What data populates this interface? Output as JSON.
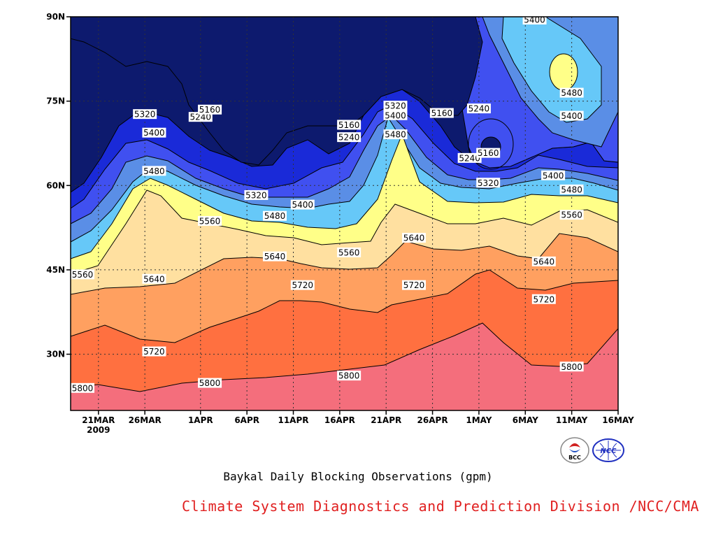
{
  "caption": "Baykal Daily Blocking Observations (gpm)",
  "credit": "Climate System Diagnostics and Prediction Division /NCC/CMA",
  "logos": [
    {
      "name": "bcc-logo",
      "text": "BCC"
    },
    {
      "name": "ncc-logo",
      "text": "NCC"
    }
  ],
  "chart_data": {
    "type": "filled-contour",
    "title": "Baykal Daily Blocking Observations (gpm)",
    "x_ticks": [
      "21MAR",
      "26MAR",
      "1APR",
      "6APR",
      "11APR",
      "16APR",
      "21APR",
      "26APR",
      "1MAY",
      "6MAY",
      "11MAY",
      "16MAY"
    ],
    "x_year_label": "2009",
    "x_range": [
      "2009-03-18",
      "2009-05-16"
    ],
    "y_ticks": [
      "30N",
      "45N",
      "60N",
      "75N",
      "90N"
    ],
    "y_range": [
      20,
      90
    ],
    "grid": "dotted",
    "contour_levels": [
      5160,
      5240,
      5320,
      5400,
      5480,
      5560,
      5640,
      5720,
      5800
    ],
    "band_colors": [
      "#0d1a6e",
      "#1a2ad8",
      "#4050f0",
      "#5a8ee6",
      "#66c8f8",
      "#ffff88",
      "#ffe0a0",
      "#ffa060",
      "#ff7040",
      "#f46e7c"
    ],
    "contour_labels": [
      {
        "date": "2009-03-19",
        "lat": 24,
        "value": "5800"
      },
      {
        "date": "2009-03-18",
        "lat": 44.2,
        "value": "5560"
      },
      {
        "date": "2009-03-26",
        "lat": 72.7,
        "value": "5320"
      },
      {
        "date": "2009-03-27",
        "lat": 69.4,
        "value": "5400"
      },
      {
        "date": "2009-03-27",
        "lat": 62.6,
        "value": "5480"
      },
      {
        "date": "2009-03-27",
        "lat": 43.4,
        "value": "5640"
      },
      {
        "date": "2009-03-27",
        "lat": 30.5,
        "value": "5720"
      },
      {
        "date": "2009-04-01",
        "lat": 72.2,
        "value": "5240"
      },
      {
        "date": "2009-04-02",
        "lat": 24.9,
        "value": "5800"
      },
      {
        "date": "2009-04-02",
        "lat": 73.5,
        "value": "5160"
      },
      {
        "date": "2009-04-02",
        "lat": 53.7,
        "value": "5560"
      },
      {
        "date": "2009-04-07",
        "lat": 58.3,
        "value": "5320"
      },
      {
        "date": "2009-04-09",
        "lat": 54.6,
        "value": "5480"
      },
      {
        "date": "2009-04-09",
        "lat": 47.4,
        "value": "5640"
      },
      {
        "date": "2009-04-12",
        "lat": 42.3,
        "value": "5720"
      },
      {
        "date": "2009-04-12",
        "lat": 56.6,
        "value": "5400"
      },
      {
        "date": "2009-04-17",
        "lat": 70.8,
        "value": "5160"
      },
      {
        "date": "2009-04-17",
        "lat": 68.6,
        "value": "5240"
      },
      {
        "date": "2009-04-17",
        "lat": 48.1,
        "value": "5560"
      },
      {
        "date": "2009-04-17",
        "lat": 26.2,
        "value": "5800"
      },
      {
        "date": "2009-04-22",
        "lat": 74.2,
        "value": "5320"
      },
      {
        "date": "2009-04-22",
        "lat": 72.5,
        "value": "5400"
      },
      {
        "date": "2009-04-22",
        "lat": 69.1,
        "value": "5480"
      },
      {
        "date": "2009-04-24",
        "lat": 50.7,
        "value": "5640"
      },
      {
        "date": "2009-04-24",
        "lat": 42.3,
        "value": "5720"
      },
      {
        "date": "2009-04-27",
        "lat": 72.9,
        "value": "5160"
      },
      {
        "date": "2009-05-01",
        "lat": 73.7,
        "value": "5240"
      },
      {
        "date": "2009-04-30",
        "lat": 64.9,
        "value": "5240"
      },
      {
        "date": "2009-05-02",
        "lat": 65.8,
        "value": "5160"
      },
      {
        "date": "2009-05-02",
        "lat": 60.5,
        "value": "5320"
      },
      {
        "date": "2009-05-07",
        "lat": 89.5,
        "value": "5400"
      },
      {
        "date": "2009-05-09",
        "lat": 61.8,
        "value": "5400"
      },
      {
        "date": "2009-05-08",
        "lat": 46.5,
        "value": "5640"
      },
      {
        "date": "2009-05-08",
        "lat": 39.8,
        "value": "5720"
      },
      {
        "date": "2009-05-11",
        "lat": 59.3,
        "value": "5480"
      },
      {
        "date": "2009-05-11",
        "lat": 54.8,
        "value": "5560"
      },
      {
        "date": "2009-05-11",
        "lat": 76.5,
        "value": "5480"
      },
      {
        "date": "2009-05-11",
        "lat": 72.4,
        "value": "5400"
      },
      {
        "date": "2009-05-11",
        "lat": 27.8,
        "value": "5800"
      }
    ]
  }
}
